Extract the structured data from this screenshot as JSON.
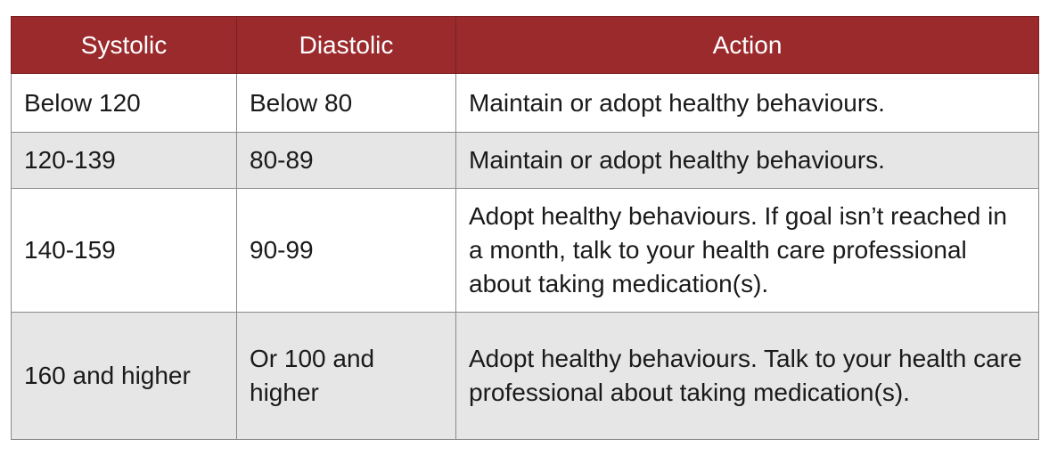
{
  "table": {
    "header": [
      "Systolic",
      "Diastolic",
      "Action"
    ],
    "rows": [
      [
        "Below 120",
        "Below 80",
        "Maintain or adopt healthy behaviours."
      ],
      [
        "120-139",
        "80-89",
        "Maintain or adopt healthy behaviours."
      ],
      [
        "140-159",
        "90-99",
        "Adopt healthy behaviours. If goal isn’t reached in a month, talk to your health care professional about taking medication(s)."
      ],
      [
        "160 and higher",
        "Or 100 and higher",
        "Adopt healthy behaviours. Talk to your health care professional about taking medication(s)."
      ]
    ]
  }
}
